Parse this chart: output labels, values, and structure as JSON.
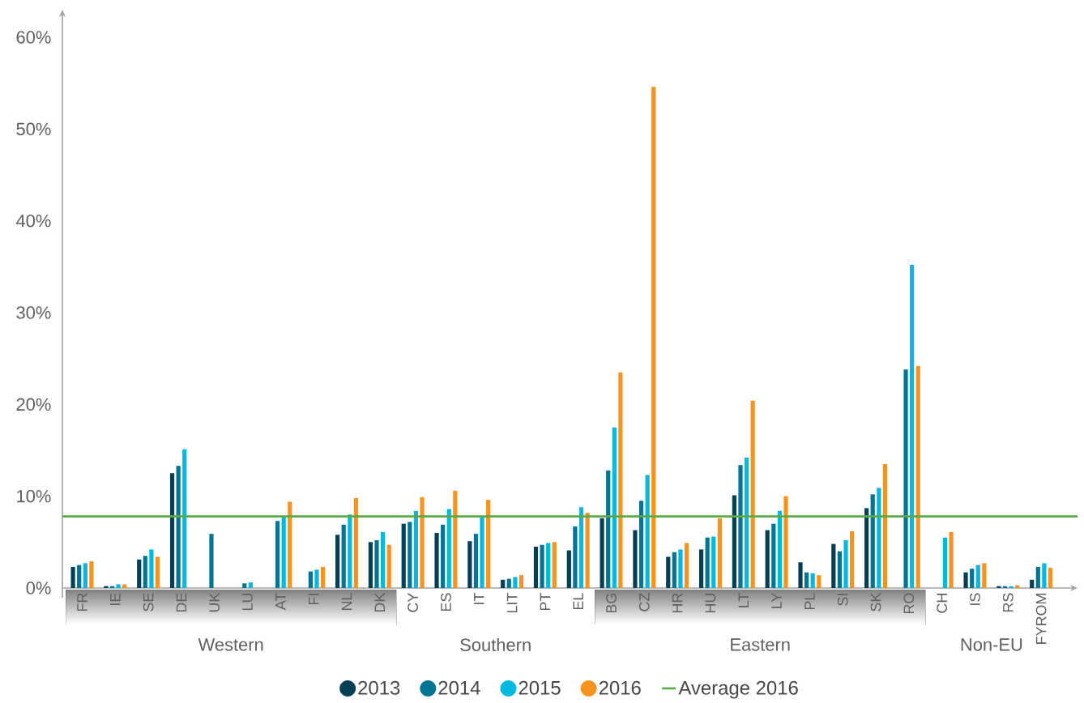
{
  "chart_data": {
    "type": "bar",
    "categories": [
      "FR",
      "IE",
      "SE",
      "DE",
      "UK",
      "LU",
      "AT",
      "FI",
      "NL",
      "DK",
      "CY",
      "ES",
      "IT",
      "LIT",
      "PT",
      "EL",
      "BG",
      "CZ",
      "HR",
      "HU",
      "LT",
      "LY",
      "PL",
      "SI",
      "SK",
      "RO",
      "CH",
      "IS",
      "RS",
      "FYROM"
    ],
    "series": [
      {
        "name": "2013",
        "color": "#053f55",
        "values": [
          2.3,
          0.2,
          3.1,
          12.5,
          null,
          null,
          null,
          null,
          5.8,
          5.0,
          7.0,
          6.0,
          5.1,
          0.9,
          4.5,
          4.1,
          7.6,
          6.3,
          3.4,
          4.2,
          10.1,
          6.3,
          2.8,
          4.8,
          8.7,
          null,
          null,
          1.7,
          0.2,
          0.9
        ]
      },
      {
        "name": "2014",
        "color": "#007593",
        "values": [
          2.5,
          0.2,
          3.5,
          13.3,
          5.9,
          0.5,
          7.3,
          1.8,
          6.9,
          5.2,
          7.2,
          6.9,
          5.9,
          1.0,
          4.7,
          6.7,
          12.8,
          9.5,
          3.9,
          5.5,
          13.4,
          7.0,
          1.7,
          4.0,
          10.2,
          23.8,
          null,
          2.1,
          0.2,
          2.3
        ]
      },
      {
        "name": "2015",
        "color": "#00b9e0",
        "values": [
          2.7,
          0.4,
          4.2,
          15.1,
          null,
          0.6,
          7.7,
          2.0,
          8.0,
          6.1,
          8.4,
          8.6,
          7.7,
          1.2,
          4.9,
          8.8,
          17.5,
          12.3,
          4.2,
          5.6,
          14.2,
          8.4,
          1.6,
          5.2,
          10.9,
          35.2,
          5.5,
          2.5,
          0.2,
          2.7
        ]
      },
      {
        "name": "2016",
        "color": "#f7941d",
        "values": [
          2.9,
          0.4,
          3.4,
          null,
          null,
          null,
          9.4,
          2.3,
          9.8,
          4.7,
          9.9,
          10.6,
          9.6,
          1.4,
          5.0,
          8.2,
          23.5,
          54.6,
          4.9,
          7.6,
          20.4,
          10.0,
          1.4,
          6.2,
          13.5,
          24.2,
          6.1,
          2.7,
          0.3,
          2.2
        ]
      }
    ],
    "ylim": [
      0,
      63
    ],
    "yticks": [
      {
        "value": 0,
        "label": "0%"
      },
      {
        "value": 10,
        "label": "10%"
      },
      {
        "value": 20,
        "label": "20%"
      },
      {
        "value": 30,
        "label": "30%"
      },
      {
        "value": 40,
        "label": "40%"
      },
      {
        "value": 50,
        "label": "50%"
      },
      {
        "value": 60,
        "label": "60%"
      }
    ],
    "ref_lines": [
      {
        "axis": "y",
        "value": 7.8,
        "label": "Average 2016",
        "color": "#5aaa46"
      }
    ],
    "annotations": [
      "Western",
      "Southern",
      "Eastern",
      "Non-EU"
    ],
    "legend": "bottom"
  }
}
